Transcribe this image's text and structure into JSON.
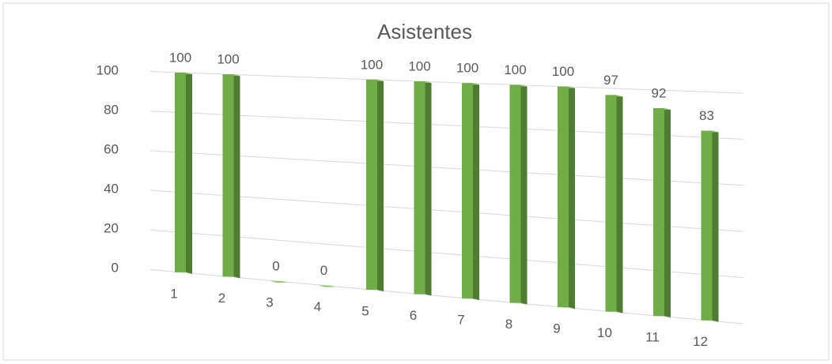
{
  "chart_data": {
    "type": "bar",
    "title": "Asistentes",
    "categories": [
      "1",
      "2",
      "3",
      "4",
      "5",
      "6",
      "7",
      "8",
      "9",
      "10",
      "11",
      "12"
    ],
    "values": [
      100,
      100,
      0,
      0,
      100,
      100,
      100,
      100,
      100,
      97,
      92,
      83
    ],
    "color": "#70ad47",
    "ylim": [
      0,
      100
    ],
    "yticks": [
      0,
      20,
      40,
      60,
      80,
      100
    ],
    "grid": true
  }
}
